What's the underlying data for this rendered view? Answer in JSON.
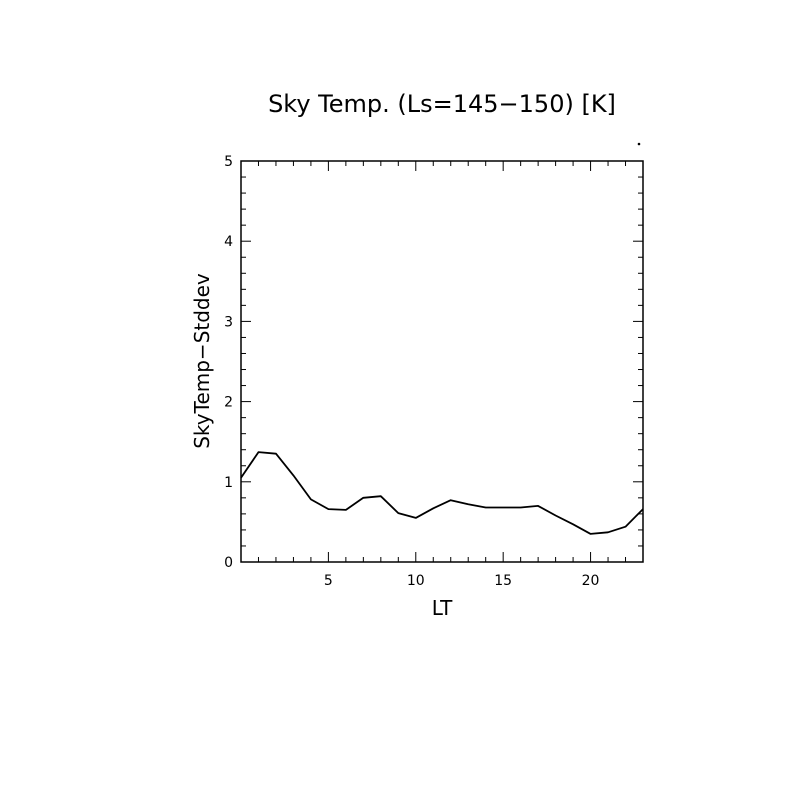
{
  "chart_data": {
    "type": "line",
    "title": "Sky Temp. (Ls=145−150) [K]",
    "xlabel": "LT",
    "ylabel": "SkyTemp−Stddev",
    "xlim": [
      0,
      23
    ],
    "ylim": [
      0,
      5
    ],
    "x_ticks": [
      5,
      10,
      15,
      20
    ],
    "x_tick_labels": [
      "5",
      "10",
      "15",
      "20"
    ],
    "y_ticks": [
      0,
      1,
      2,
      3,
      4,
      5
    ],
    "y_tick_labels": [
      "0",
      "1",
      "2",
      "3",
      "4",
      "5"
    ],
    "grid": false,
    "series": [
      {
        "color": "#000000",
        "x": [
          0,
          1,
          2,
          3,
          4,
          5,
          6,
          7,
          8,
          9,
          10,
          11,
          12,
          13,
          14,
          15,
          16,
          17,
          18,
          19,
          20,
          21,
          22,
          23
        ],
        "y": [
          1.05,
          1.37,
          1.35,
          1.08,
          0.78,
          0.66,
          0.65,
          0.8,
          0.82,
          0.61,
          0.55,
          0.67,
          0.77,
          0.72,
          0.68,
          0.68,
          0.68,
          0.7,
          0.58,
          0.47,
          0.35,
          0.37,
          0.44,
          0.66
        ]
      }
    ]
  }
}
